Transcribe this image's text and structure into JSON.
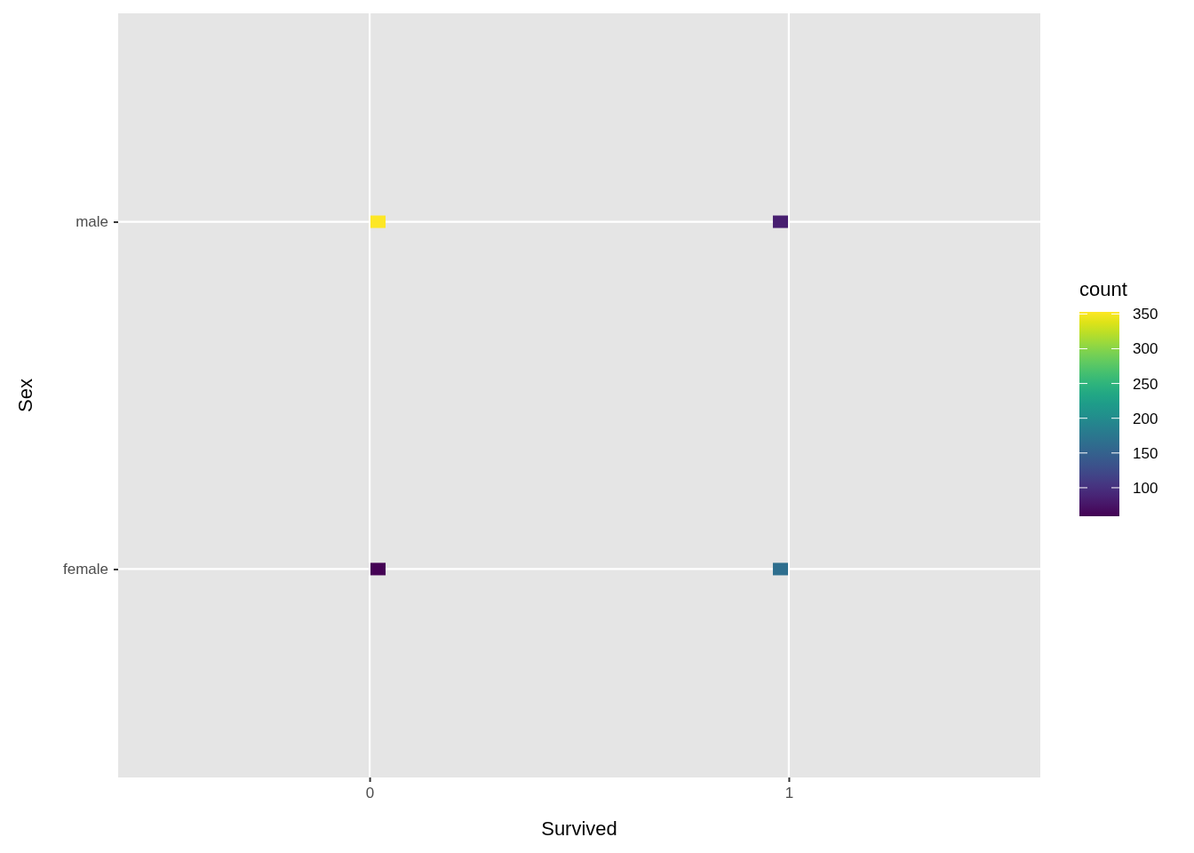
{
  "chart_data": {
    "type": "scatter",
    "orientation": "horizontal",
    "xlabel": "Survived",
    "ylabel": "Sex",
    "clabel": "count",
    "categories": [
      "male",
      "female"
    ],
    "xlim": [
      -0.6,
      1.6
    ],
    "xticks": [
      0,
      1
    ],
    "series": [
      {
        "values": [
          0.02,
          0.02
        ],
        "cvalues": [
          353,
          59
        ],
        "colors": [
          "#fde725",
          "#440154"
        ]
      },
      {
        "values": [
          0.98,
          0.98
        ],
        "cvalues": [
          85,
          165
        ],
        "colors": [
          "#481f70",
          "#2e6e8e"
        ]
      }
    ],
    "clim": [
      59,
      353
    ],
    "cticks": [
      100,
      150,
      200,
      250,
      300,
      350
    ],
    "marker": "square",
    "grid": true
  }
}
